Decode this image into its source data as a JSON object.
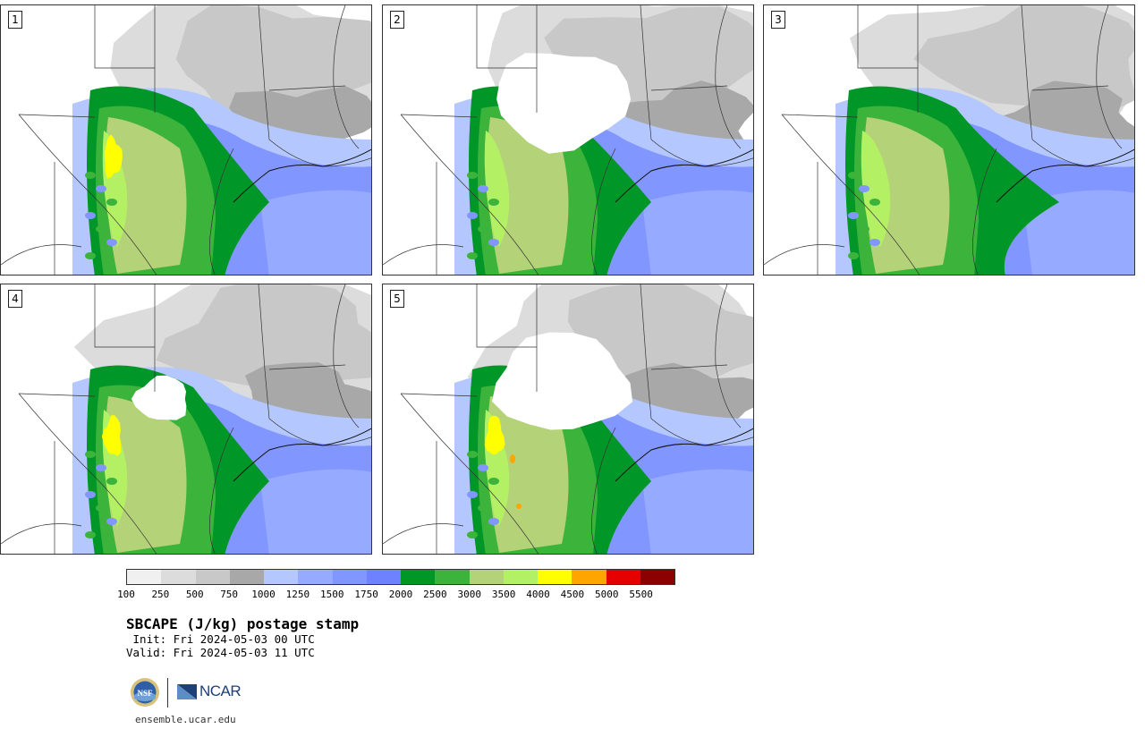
{
  "panels": [
    {
      "label": "1",
      "variant": 1
    },
    {
      "label": "2",
      "variant": 2
    },
    {
      "label": "3",
      "variant": 3
    },
    {
      "label": "4",
      "variant": 4
    },
    {
      "label": "5",
      "variant": 5
    }
  ],
  "colorbar": {
    "colors": [
      "#f0f0f0",
      "#dcdcdc",
      "#c8c8c8",
      "#a8a8a8",
      "#b4c8ff",
      "#96aaff",
      "#8296ff",
      "#6e82ff",
      "#009628",
      "#3cb43c",
      "#b4d278",
      "#b4f064",
      "#ffff00",
      "#ffa500",
      "#e60000",
      "#8b0000"
    ],
    "ticks": [
      "100",
      "250",
      "500",
      "750",
      "1000",
      "1250",
      "1500",
      "1750",
      "2000",
      "2500",
      "3000",
      "3500",
      "4000",
      "4500",
      "5000",
      "5500"
    ]
  },
  "title": "SBCAPE (J/kg) postage stamp",
  "init": " Init: Fri 2024-05-03 00 UTC",
  "valid": "Valid: Fri 2024-05-03 11 UTC",
  "logos": {
    "nsf": "NSF",
    "ncar": "NCAR"
  },
  "site": "ensemble.ucar.edu"
}
